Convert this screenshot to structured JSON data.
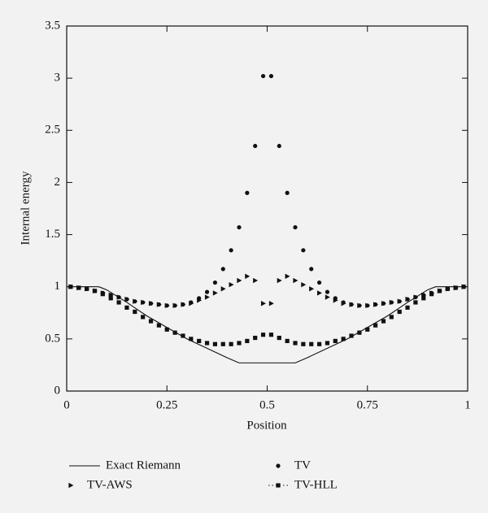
{
  "chart_data": {
    "type": "scatter",
    "xlabel": "Position",
    "ylabel": "Internal energy",
    "xlim": [
      0,
      1
    ],
    "ylim": [
      0,
      3.5
    ],
    "xticks": [
      0,
      0.25,
      0.5,
      0.75,
      1
    ],
    "yticks": [
      0,
      0.5,
      1,
      1.5,
      2,
      2.5,
      3,
      3.5
    ],
    "series": [
      {
        "name": "Exact Riemann",
        "color": "#111111",
        "marker": "line",
        "x": [
          0,
          0.08,
          0.1,
          0.15,
          0.2,
          0.25,
          0.3,
          0.35,
          0.4,
          0.43,
          0.5,
          0.57,
          0.6,
          0.65,
          0.7,
          0.75,
          0.8,
          0.85,
          0.9,
          0.92,
          1
        ],
        "values": [
          1,
          1,
          0.97,
          0.85,
          0.72,
          0.61,
          0.5,
          0.41,
          0.32,
          0.27,
          0.27,
          0.27,
          0.32,
          0.41,
          0.5,
          0.61,
          0.72,
          0.85,
          0.97,
          1,
          1
        ]
      },
      {
        "name": "TV",
        "color": "#111111",
        "marker": "circle",
        "x": [
          0.01,
          0.03,
          0.05,
          0.07,
          0.09,
          0.11,
          0.13,
          0.15,
          0.17,
          0.19,
          0.21,
          0.23,
          0.25,
          0.27,
          0.29,
          0.31,
          0.33,
          0.35,
          0.37,
          0.39,
          0.41,
          0.43,
          0.45,
          0.47,
          0.49,
          0.51,
          0.53,
          0.55,
          0.57,
          0.59,
          0.61,
          0.63,
          0.65,
          0.67,
          0.69,
          0.71,
          0.73,
          0.75,
          0.77,
          0.79,
          0.81,
          0.83,
          0.85,
          0.87,
          0.89,
          0.91,
          0.93,
          0.95,
          0.97,
          0.99
        ],
        "values": [
          1.0,
          0.99,
          0.98,
          0.96,
          0.94,
          0.92,
          0.9,
          0.88,
          0.86,
          0.85,
          0.84,
          0.83,
          0.82,
          0.82,
          0.83,
          0.85,
          0.89,
          0.95,
          1.04,
          1.17,
          1.35,
          1.57,
          1.9,
          2.35,
          3.02,
          3.02,
          2.35,
          1.9,
          1.57,
          1.35,
          1.17,
          1.04,
          0.95,
          0.89,
          0.85,
          0.83,
          0.82,
          0.82,
          0.83,
          0.84,
          0.85,
          0.86,
          0.88,
          0.9,
          0.92,
          0.94,
          0.96,
          0.98,
          0.99,
          1.0
        ]
      },
      {
        "name": "TV-AWS",
        "color": "#111111",
        "marker": "triangle",
        "x": [
          0.01,
          0.03,
          0.05,
          0.07,
          0.09,
          0.11,
          0.13,
          0.15,
          0.17,
          0.19,
          0.21,
          0.23,
          0.25,
          0.27,
          0.29,
          0.31,
          0.33,
          0.35,
          0.37,
          0.39,
          0.41,
          0.43,
          0.45,
          0.47,
          0.49,
          0.51,
          0.53,
          0.55,
          0.57,
          0.59,
          0.61,
          0.63,
          0.65,
          0.67,
          0.69,
          0.71,
          0.73,
          0.75,
          0.77,
          0.79,
          0.81,
          0.83,
          0.85,
          0.87,
          0.89,
          0.91,
          0.93,
          0.95,
          0.97,
          0.99
        ],
        "values": [
          1.0,
          0.99,
          0.98,
          0.96,
          0.94,
          0.92,
          0.9,
          0.88,
          0.86,
          0.85,
          0.84,
          0.83,
          0.82,
          0.82,
          0.83,
          0.84,
          0.87,
          0.9,
          0.94,
          0.98,
          1.02,
          1.06,
          1.1,
          1.06,
          0.84,
          0.84,
          1.06,
          1.1,
          1.06,
          1.02,
          0.98,
          0.94,
          0.9,
          0.87,
          0.84,
          0.83,
          0.82,
          0.82,
          0.83,
          0.84,
          0.85,
          0.86,
          0.88,
          0.9,
          0.92,
          0.94,
          0.96,
          0.98,
          0.99,
          1.0
        ]
      },
      {
        "name": "TV-HLL",
        "color": "#111111",
        "marker": "square",
        "x": [
          0.01,
          0.03,
          0.05,
          0.07,
          0.09,
          0.11,
          0.13,
          0.15,
          0.17,
          0.19,
          0.21,
          0.23,
          0.25,
          0.27,
          0.29,
          0.31,
          0.33,
          0.35,
          0.37,
          0.39,
          0.41,
          0.43,
          0.45,
          0.47,
          0.49,
          0.51,
          0.53,
          0.55,
          0.57,
          0.59,
          0.61,
          0.63,
          0.65,
          0.67,
          0.69,
          0.71,
          0.73,
          0.75,
          0.77,
          0.79,
          0.81,
          0.83,
          0.85,
          0.87,
          0.89,
          0.91,
          0.93,
          0.95,
          0.97,
          0.99
        ],
        "values": [
          1.0,
          0.99,
          0.98,
          0.96,
          0.93,
          0.89,
          0.85,
          0.8,
          0.76,
          0.71,
          0.67,
          0.63,
          0.59,
          0.56,
          0.53,
          0.5,
          0.48,
          0.46,
          0.45,
          0.45,
          0.45,
          0.46,
          0.48,
          0.51,
          0.54,
          0.54,
          0.51,
          0.48,
          0.46,
          0.45,
          0.45,
          0.45,
          0.46,
          0.48,
          0.5,
          0.53,
          0.56,
          0.59,
          0.63,
          0.67,
          0.71,
          0.76,
          0.8,
          0.85,
          0.89,
          0.93,
          0.96,
          0.98,
          0.99,
          1.0
        ]
      }
    ]
  }
}
